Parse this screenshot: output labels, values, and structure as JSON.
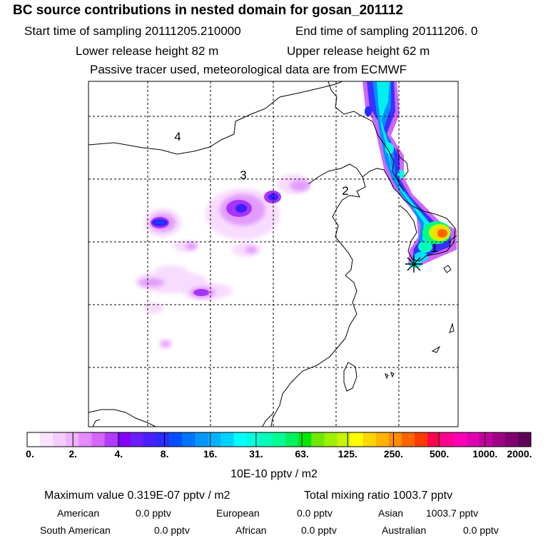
{
  "header": {
    "title": "BC  source contributions in nested domain for gosan_201112",
    "start_label": "Start time of sampling 20111205.210000",
    "end_label": "End time of sampling 20111206.     0",
    "lower_release": "Lower release height   82 m",
    "upper_release": "Upper release height   62 m",
    "tracer_note": "Passive tracer used, meteorological data are from ECMWF"
  },
  "map": {
    "region_labels": [
      "4",
      "3",
      "2",
      "1"
    ],
    "colors": {
      "background": "#ffffff",
      "grid": "#000000",
      "coast": "#000000"
    }
  },
  "colorbar": {
    "tick_labels": [
      "0.",
      "2.",
      "4.",
      "8.",
      "16.",
      "31.",
      "63.",
      "125.",
      "250.",
      "500.",
      "1000.",
      "2000."
    ],
    "colors": [
      "#ffffff",
      "#fbe3ff",
      "#f6ccff",
      "#efb2ff",
      "#e38bff",
      "#d466ff",
      "#b13cff",
      "#8400ff",
      "#6a1fff",
      "#4a1fff",
      "#2b2bff",
      "#0050ff",
      "#0073ff",
      "#0096ff",
      "#00b3ff",
      "#00d2ff",
      "#00ffff",
      "#00ffdd",
      "#00ffb7",
      "#00ff92",
      "#00f060",
      "#00e800",
      "#6ee800",
      "#a0f000",
      "#c8f500",
      "#ffff00",
      "#ffd700",
      "#ffb400",
      "#ff8c00",
      "#ff6400",
      "#ff3c00",
      "#ff0050",
      "#ff0090",
      "#ff00b4",
      "#e000b4",
      "#c0009c",
      "#a00088",
      "#800070",
      "#600058"
    ],
    "units": "10E-10 pptv / m2"
  },
  "stats": {
    "maximum": "Maximum value  0.319E-07 pptv / m2",
    "total": "Total mixing ratio    1003.7 pptv",
    "american": "American",
    "american_val": "0.0 pptv",
    "european": "European",
    "european_val": "0.0 pptv",
    "asian": "Asian",
    "asian_val": "1003.7 pptv",
    "south_american": "South American",
    "south_american_val": "0.0 pptv",
    "african": "African",
    "african_val": "0.0 pptv",
    "australian": "Australian",
    "australian_val": "0.0 pptv"
  }
}
